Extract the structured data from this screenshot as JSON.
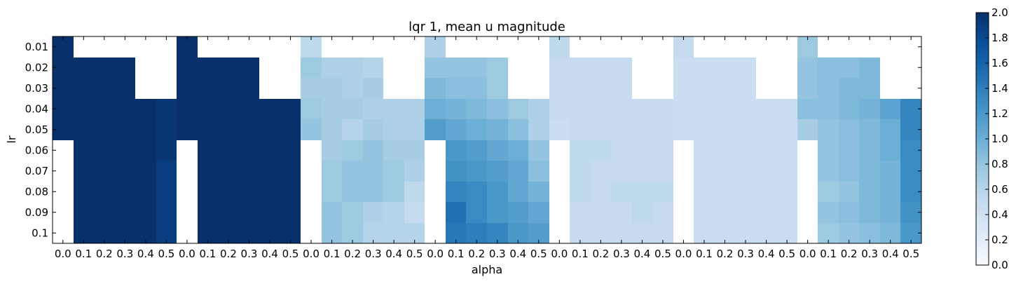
{
  "chart_data": {
    "type": "heatmap",
    "title": "lqr 1, mean u magnitude",
    "xlabel": "alpha",
    "ylabel": "lr",
    "x_tick_labels": [
      "0.0",
      "0.1",
      "0.2",
      "0.3",
      "0.4",
      "0.5",
      "0.0",
      "0.1",
      "0.2",
      "0.3",
      "0.4",
      "0.5",
      "0.0",
      "0.1",
      "0.2",
      "0.3",
      "0.4",
      "0.5",
      "0.0",
      "0.1",
      "0.2",
      "0.3",
      "0.4",
      "0.5",
      "0.0",
      "0.1",
      "0.2",
      "0.3",
      "0.4",
      "0.5",
      "0.0",
      "0.1",
      "0.2",
      "0.3",
      "0.4",
      "0.5",
      "0.0",
      "0.1",
      "0.2",
      "0.3",
      "0.4",
      "0.5"
    ],
    "y_tick_labels": [
      "0.01",
      "0.02",
      "0.03",
      "0.04",
      "0.05",
      "0.06",
      "0.07",
      "0.08",
      "0.09",
      "0.1"
    ],
    "color_scale": {
      "min": 0.0,
      "max": 2.0,
      "colormap": "Blues",
      "missing_color": "#ffffff"
    },
    "colorbar_ticks": [
      "0.0",
      "0.2",
      "0.4",
      "0.6",
      "0.8",
      "1.0",
      "1.2",
      "1.4",
      "1.6",
      "1.8",
      "2.0"
    ],
    "values": [
      [
        2.0,
        null,
        null,
        null,
        null,
        null,
        2.0,
        null,
        null,
        null,
        null,
        null,
        0.55,
        null,
        null,
        null,
        null,
        null,
        0.65,
        null,
        null,
        null,
        null,
        null,
        0.55,
        null,
        null,
        null,
        null,
        null,
        0.5,
        null,
        null,
        null,
        null,
        null,
        0.75,
        null,
        null,
        null,
        null,
        null
      ],
      [
        2.0,
        2.0,
        2.0,
        2.0,
        null,
        null,
        2.0,
        2.0,
        2.0,
        2.0,
        null,
        null,
        0.75,
        0.65,
        0.65,
        0.6,
        null,
        null,
        0.8,
        0.8,
        0.8,
        0.75,
        null,
        null,
        0.5,
        0.5,
        0.5,
        0.5,
        null,
        null,
        0.45,
        0.45,
        0.45,
        0.45,
        null,
        null,
        0.8,
        0.85,
        0.85,
        0.9,
        null,
        null
      ],
      [
        2.0,
        2.0,
        2.0,
        2.0,
        null,
        null,
        2.0,
        2.0,
        2.0,
        2.0,
        null,
        null,
        0.7,
        0.7,
        0.65,
        0.7,
        null,
        null,
        0.9,
        0.85,
        0.85,
        0.75,
        null,
        null,
        0.5,
        0.5,
        0.5,
        0.5,
        null,
        null,
        0.45,
        0.45,
        0.45,
        0.45,
        null,
        null,
        0.8,
        0.85,
        0.9,
        0.9,
        null,
        null
      ],
      [
        2.0,
        2.0,
        2.0,
        2.0,
        2.0,
        1.95,
        2.0,
        2.0,
        2.0,
        2.0,
        2.0,
        2.0,
        0.75,
        0.7,
        0.7,
        0.65,
        0.65,
        0.65,
        1.0,
        0.95,
        0.9,
        0.85,
        0.75,
        0.65,
        0.5,
        0.5,
        0.5,
        0.5,
        0.5,
        0.5,
        0.45,
        0.45,
        0.45,
        0.45,
        0.45,
        0.45,
        0.85,
        0.85,
        0.9,
        0.95,
        1.1,
        1.35
      ],
      [
        2.0,
        2.0,
        2.0,
        2.0,
        2.0,
        1.95,
        2.0,
        2.0,
        2.0,
        2.0,
        2.0,
        2.0,
        0.8,
        0.7,
        0.6,
        0.7,
        0.65,
        0.65,
        1.15,
        1.05,
        1.0,
        0.95,
        0.85,
        0.65,
        0.45,
        0.5,
        0.5,
        0.5,
        0.5,
        0.5,
        0.45,
        0.45,
        0.45,
        0.45,
        0.45,
        0.45,
        0.7,
        0.8,
        0.85,
        0.9,
        1.0,
        1.35
      ],
      [
        null,
        2.0,
        2.0,
        2.0,
        2.0,
        1.95,
        null,
        2.0,
        2.0,
        2.0,
        2.0,
        2.0,
        null,
        0.7,
        0.75,
        0.8,
        0.7,
        0.7,
        null,
        1.2,
        1.15,
        1.05,
        1.0,
        0.8,
        null,
        0.55,
        0.55,
        0.5,
        0.5,
        0.5,
        null,
        0.45,
        0.45,
        0.45,
        0.45,
        0.45,
        null,
        0.8,
        0.85,
        0.9,
        1.0,
        1.3
      ],
      [
        null,
        2.0,
        2.0,
        2.0,
        2.0,
        1.9,
        null,
        2.0,
        2.0,
        2.0,
        2.0,
        2.0,
        null,
        0.75,
        0.8,
        0.8,
        0.75,
        0.65,
        null,
        1.25,
        1.2,
        1.15,
        1.05,
        0.85,
        null,
        0.55,
        0.5,
        0.5,
        0.5,
        0.5,
        null,
        0.45,
        0.45,
        0.45,
        0.45,
        0.45,
        null,
        0.8,
        0.85,
        0.9,
        0.95,
        1.3
      ],
      [
        null,
        2.0,
        2.0,
        2.0,
        2.0,
        1.9,
        null,
        2.0,
        2.0,
        2.0,
        2.0,
        2.0,
        null,
        0.75,
        0.8,
        0.8,
        0.75,
        0.55,
        null,
        1.35,
        1.3,
        1.2,
        1.05,
        0.95,
        null,
        0.55,
        0.5,
        0.55,
        0.55,
        0.55,
        null,
        0.45,
        0.45,
        0.45,
        0.45,
        0.45,
        null,
        0.75,
        0.8,
        0.9,
        0.95,
        1.3
      ],
      [
        null,
        2.0,
        2.0,
        2.0,
        2.0,
        1.9,
        null,
        2.0,
        2.0,
        2.0,
        2.0,
        2.0,
        null,
        0.8,
        0.75,
        0.65,
        0.6,
        0.5,
        null,
        1.5,
        1.3,
        1.2,
        1.15,
        1.05,
        null,
        0.5,
        0.5,
        0.5,
        0.55,
        0.5,
        null,
        0.45,
        0.45,
        0.45,
        0.45,
        0.45,
        null,
        0.8,
        0.85,
        0.9,
        0.95,
        1.25
      ],
      [
        null,
        2.0,
        2.0,
        2.0,
        2.0,
        1.9,
        null,
        2.0,
        2.0,
        2.0,
        2.0,
        2.0,
        null,
        0.8,
        0.75,
        0.6,
        0.6,
        0.6,
        null,
        1.45,
        1.4,
        1.35,
        1.2,
        1.15,
        null,
        0.5,
        0.5,
        0.5,
        0.5,
        0.5,
        null,
        0.45,
        0.45,
        0.45,
        0.45,
        0.45,
        null,
        0.75,
        0.8,
        0.85,
        0.9,
        1.2
      ]
    ]
  }
}
